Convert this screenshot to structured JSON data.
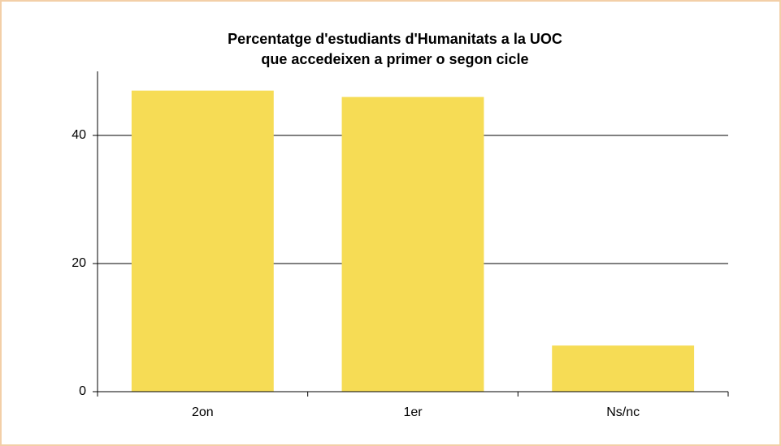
{
  "chart_data": {
    "type": "bar",
    "title": [
      "Percentatge d'estudiants d'Humanitats a la UOC",
      "que accedeixen a primer o segon cicle"
    ],
    "categories": [
      "2on",
      "1er",
      "Ns/nc"
    ],
    "values": [
      47,
      46,
      7.2
    ],
    "color": "#f6dc55",
    "ylim": [
      0,
      50
    ],
    "yticks": [
      0,
      20,
      40
    ],
    "grid": true
  }
}
